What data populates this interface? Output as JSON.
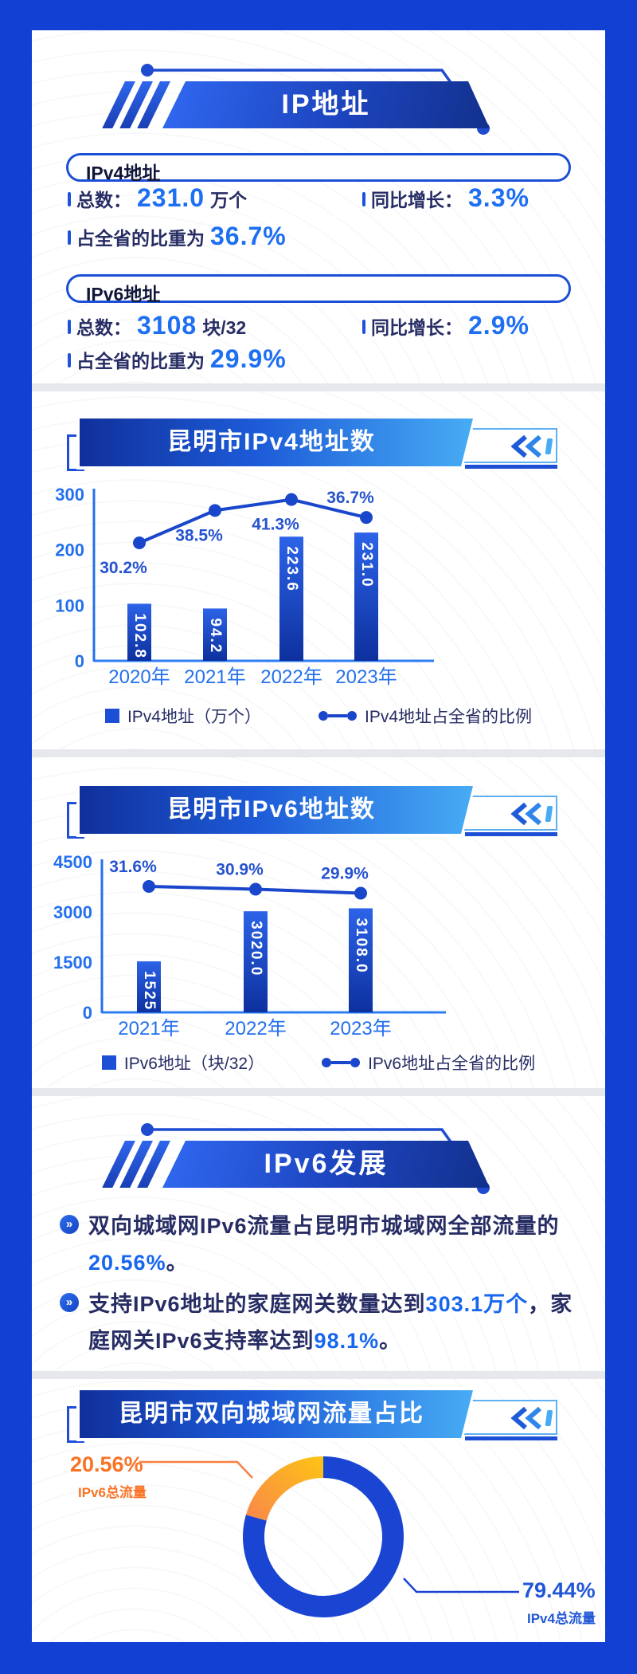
{
  "colors": {
    "frame_blue": "#1140D2",
    "accent_blue": "#1E6FF2",
    "axis_blue": "#2470EE",
    "pct_blue": "#2553CF",
    "line_blue": "#1A46CC",
    "bar_top": "#2C63E8",
    "bar_bottom": "#0D309E",
    "dark_text": "#272D64",
    "orange": "#F97326",
    "donut_blue": "#1A45D2"
  },
  "header": {
    "title": "IP地址"
  },
  "ipv4_box": {
    "title": "IPv4地址",
    "total_label": "总数：",
    "total_value": "231.0",
    "total_unit": "万个",
    "growth_label": "同比增长：",
    "growth_value": "3.3%",
    "share_label": "占全省的比重为",
    "share_value": "36.7%"
  },
  "ipv6_box": {
    "title": "IPv6地址",
    "total_label": "总数：",
    "total_value": "3108",
    "total_unit": "块/32",
    "growth_label": "同比增长：",
    "growth_value": "2.9%",
    "share_label": "占全省的比重为",
    "share_value": "29.9%"
  },
  "section_ipv6": {
    "title": "IPv6发展",
    "bullet1": {
      "pre": "双向城域网IPv6流量占昆明市城域网全部流量的",
      "hl": "20.56%",
      "post": "。"
    },
    "bullet2": {
      "pre": "支持IPv6地址的家庭网关数量达到",
      "hl1": "303.1万个",
      "mid": "，家庭网关IPv6支持率达到",
      "hl2": "98.1%",
      "post": "。"
    }
  },
  "chart_data": [
    {
      "type": "bar",
      "title": "昆明市IPv4地址数",
      "categories": [
        "2020年",
        "2021年",
        "2022年",
        "2023年"
      ],
      "yticks": [
        0,
        100,
        200,
        300
      ],
      "ylim": [
        0,
        300
      ],
      "grid": false,
      "legend_position": "bottom",
      "bar_labels": [
        "102.8",
        "94.2",
        "223.6",
        "231.0"
      ],
      "pct_labels": [
        "30.2%",
        "38.5%",
        "41.3%",
        "36.7%"
      ],
      "pct_label_pos": [
        "below",
        "below",
        "below",
        "above"
      ],
      "series": [
        {
          "name": "IPv4地址（万个）",
          "type": "bar",
          "values": [
            102.8,
            94.2,
            223.6,
            231.0
          ]
        },
        {
          "name": "IPv4地址占全省的比例",
          "type": "line",
          "unit": "%",
          "values": [
            30.2,
            38.5,
            41.3,
            36.7
          ]
        }
      ]
    },
    {
      "type": "bar",
      "title": "昆明市IPv6地址数",
      "categories": [
        "2021年",
        "2022年",
        "2023年"
      ],
      "yticks": [
        0,
        1500,
        3000,
        4500
      ],
      "ylim": [
        0,
        4500
      ],
      "grid": false,
      "legend_position": "bottom",
      "bar_labels": [
        "1525",
        "3020.0",
        "3108.0"
      ],
      "pct_labels": [
        "31.6%",
        "30.9%",
        "29.9%"
      ],
      "pct_label_pos": [
        "above",
        "above",
        "above"
      ],
      "series": [
        {
          "name": "IPv6地址（块/32）",
          "type": "bar",
          "values": [
            1525,
            3020.0,
            3108.0
          ]
        },
        {
          "name": "IPv6地址占全省的比例",
          "type": "line",
          "unit": "%",
          "values": [
            31.6,
            30.9,
            29.9
          ]
        }
      ]
    },
    {
      "type": "donut",
      "title": "昆明市双向城域网流量占比",
      "slices": [
        {
          "label": "IPv6总流量",
          "value": 20.56,
          "pct_label": "20.56%",
          "color": "#F9A045"
        },
        {
          "label": "IPv4总流量",
          "value": 79.44,
          "pct_label": "79.44%",
          "color": "#1A45D2"
        }
      ]
    }
  ]
}
